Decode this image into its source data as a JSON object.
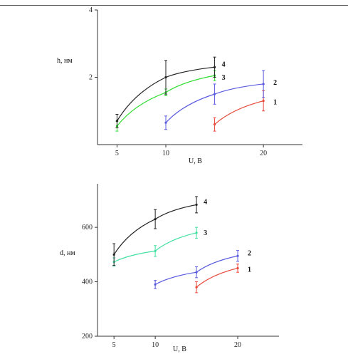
{
  "chart_data": [
    {
      "type": "line",
      "xlabel": "U, B",
      "ylabel": "h, нм",
      "xlim": [
        3,
        24
      ],
      "ylim": [
        0,
        4
      ],
      "xticks": [
        "5",
        "10",
        "20"
      ],
      "yticks": [
        "2",
        "4"
      ],
      "grid": false,
      "series": [
        {
          "name": "1",
          "color": "#e8473a",
          "x": [
            15,
            20
          ],
          "y": [
            0.6,
            1.3
          ],
          "err": [
            0.2,
            0.3
          ]
        },
        {
          "name": "2",
          "color": "#5a5be0",
          "x": [
            10,
            15,
            20
          ],
          "y": [
            0.65,
            1.5,
            1.8
          ],
          "err": [
            0.2,
            0.3,
            0.4
          ]
        },
        {
          "name": "3",
          "color": "#33dd33",
          "x": [
            5,
            10,
            15
          ],
          "y": [
            0.55,
            1.55,
            2.05
          ],
          "err": [
            0.15,
            0.1,
            0.15
          ]
        },
        {
          "name": "4",
          "color": "#222222",
          "x": [
            5,
            10,
            15
          ],
          "y": [
            0.7,
            2.0,
            2.3
          ],
          "err": [
            0.2,
            0.5,
            0.3
          ]
        }
      ]
    },
    {
      "type": "line",
      "xlabel": "U, B",
      "ylabel": "d, нм",
      "xlim": [
        3,
        25
      ],
      "ylim": [
        200,
        760
      ],
      "xticks": [
        "5",
        "10",
        "20"
      ],
      "yticks": [
        "200",
        "400",
        "600"
      ],
      "grid": false,
      "series": [
        {
          "name": "1",
          "color": "#e8473a",
          "x": [
            15,
            20
          ],
          "y": [
            380,
            450
          ],
          "err": [
            20,
            15
          ]
        },
        {
          "name": "2",
          "color": "#5a5be0",
          "x": [
            10,
            15,
            20
          ],
          "y": [
            390,
            435,
            495
          ],
          "err": [
            15,
            20,
            20
          ]
        },
        {
          "name": "3",
          "color": "#40e0a0",
          "x": [
            5,
            10,
            15
          ],
          "y": [
            473,
            513,
            580
          ],
          "err": [
            15,
            20,
            20
          ]
        },
        {
          "name": "4",
          "color": "#222222",
          "x": [
            5,
            10,
            15
          ],
          "y": [
            500,
            630,
            683
          ],
          "err": [
            40,
            35,
            30
          ]
        }
      ]
    }
  ]
}
